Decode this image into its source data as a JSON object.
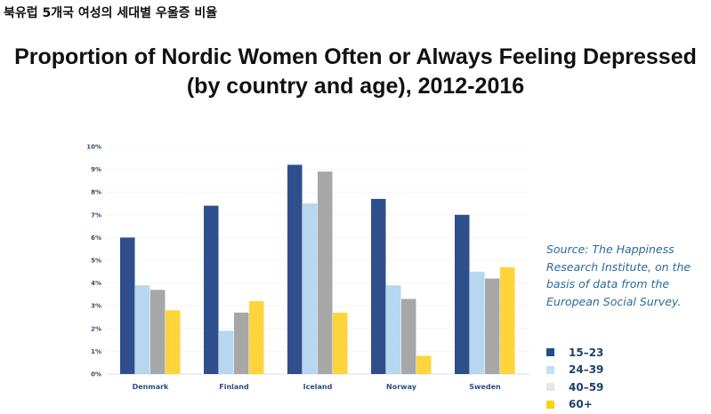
{
  "header": "북유럽 5개국 여성의 세대별 우울증 비율",
  "chart_data": {
    "type": "bar",
    "title": "Proportion of Nordic Women Often or Always Feeling Depressed (by country and age), 2012-2016",
    "title_lines": [
      "Proportion of Nordic Women Often or Always Feeling Depressed",
      "(by country and age), 2012-2016"
    ],
    "categories": [
      "Denmark",
      "Finland",
      "Iceland",
      "Norway",
      "Sweden"
    ],
    "series": [
      {
        "name": "15–23",
        "color": "#2f4e8c",
        "values": [
          6.0,
          7.4,
          9.2,
          7.7,
          7.0
        ]
      },
      {
        "name": "24–39",
        "color": "#b7d6f0",
        "values": [
          3.9,
          1.9,
          7.5,
          3.9,
          4.5
        ]
      },
      {
        "name": "40–59",
        "color": "#a7a7a7",
        "values": [
          3.7,
          2.7,
          8.9,
          3.3,
          4.2
        ]
      },
      {
        "name": "60+",
        "color": "#fdd53a",
        "values": [
          2.8,
          3.2,
          2.7,
          0.8,
          4.7
        ]
      }
    ],
    "legend_colors": [
      "#1f4f86",
      "#c2dff5",
      "#e6e6e6",
      "#fdd20a"
    ],
    "yticks": [
      "0%",
      "1%",
      "2%",
      "3%",
      "4%",
      "5%",
      "6%",
      "7%",
      "8%",
      "9%",
      "10%"
    ],
    "ylim": [
      0,
      10
    ],
    "xlabel": "",
    "ylabel": "",
    "grid": true,
    "legend_placement": "right",
    "source": "Source: The Happiness Research Institute, on the basis of data from the European Social Survey."
  }
}
